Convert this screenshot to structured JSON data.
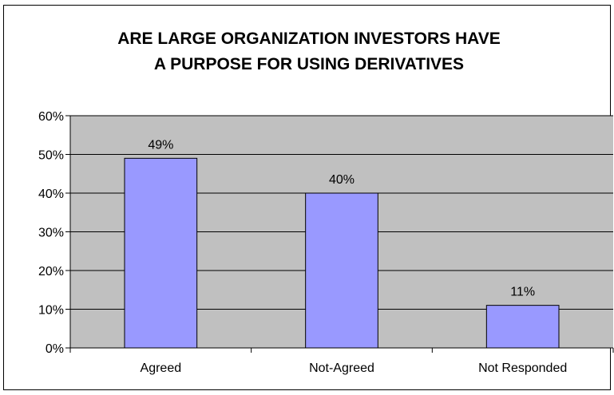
{
  "chart_data": {
    "type": "bar",
    "title_lines": [
      "ARE LARGE ORGANIZATION INVESTORS HAVE",
      "A PURPOSE FOR USING DERIVATIVES"
    ],
    "categories": [
      "Agreed",
      "Not-Agreed",
      "Not Responded"
    ],
    "values": [
      49,
      40,
      11
    ],
    "data_labels": [
      "49%",
      "40%",
      "11%"
    ],
    "ylim": [
      0,
      60
    ],
    "yticks": [
      0,
      10,
      20,
      30,
      40,
      50,
      60
    ],
    "ytick_labels": [
      "0%",
      "10%",
      "20%",
      "30%",
      "40%",
      "50%",
      "60%"
    ],
    "xlabel": "",
    "ylabel": "",
    "grid": true,
    "legend": "none",
    "colors": {
      "bar_fill": "#9999ff",
      "bar_stroke": "#000000",
      "plot_background": "#c0c0c0",
      "gridline": "#000000"
    }
  }
}
